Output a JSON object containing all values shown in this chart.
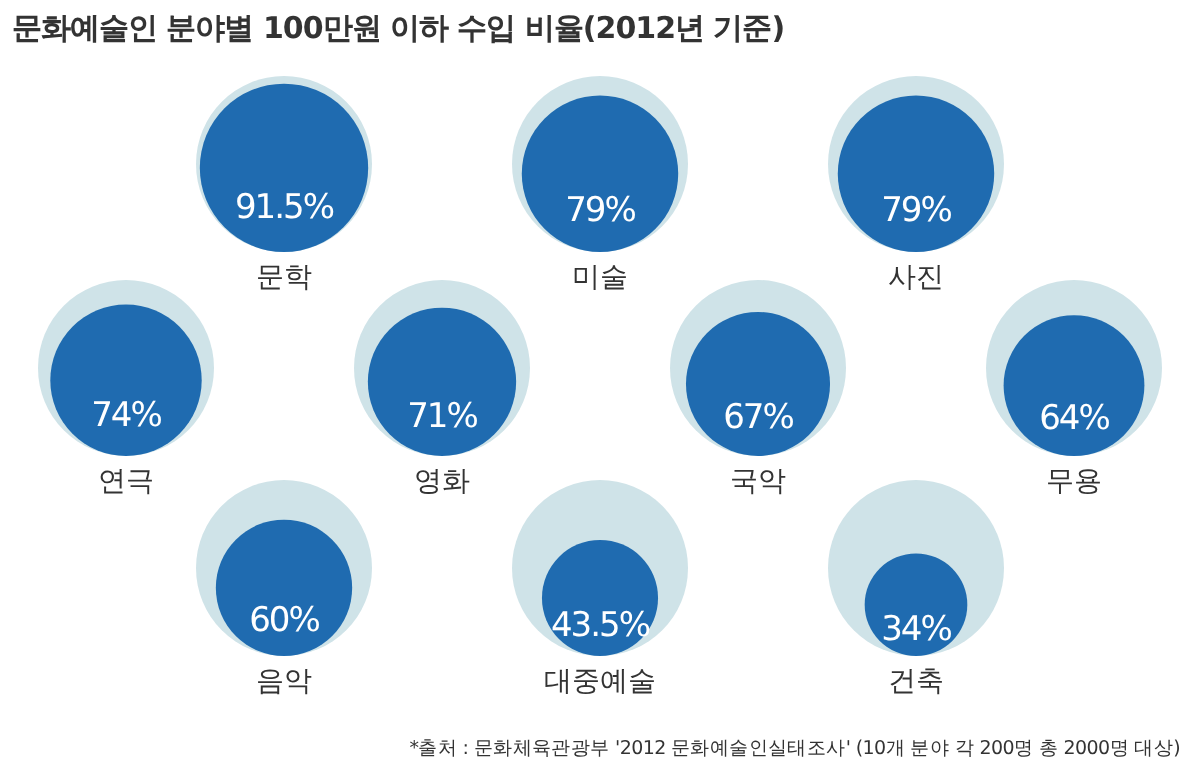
{
  "chart_data": {
    "type": "other",
    "title": "문화예술인 분야별 100만원 이하 수입 비율(2012년 기준)",
    "categories": [
      "문학",
      "미술",
      "사진",
      "연극",
      "영화",
      "국악",
      "무용",
      "음악",
      "대중예술",
      "건축"
    ],
    "values": [
      91.5,
      79,
      79,
      74,
      71,
      67,
      64,
      60,
      43.5,
      34
    ],
    "value_labels": [
      "91.5%",
      "79%",
      "79%",
      "74%",
      "71%",
      "67%",
      "64%",
      "60%",
      "43.5%",
      "34%"
    ],
    "color": "#1f6bb0",
    "annotations": [
      "*출처 : 문화체육관광부 '2012 문화예술인실태조사' (10개 분야 각 200명 총 2000명 대상)"
    ]
  }
}
